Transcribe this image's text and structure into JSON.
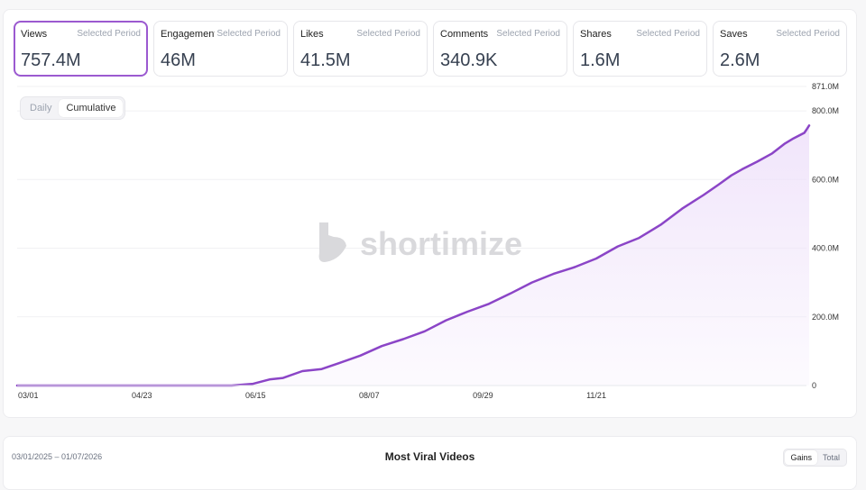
{
  "metrics": [
    {
      "label": "Views",
      "period": "Selected Period",
      "value": "757.4M",
      "active": true
    },
    {
      "label": "Engagement",
      "period": "Selected Period",
      "value": "46M",
      "active": false
    },
    {
      "label": "Likes",
      "period": "Selected Period",
      "value": "41.5M",
      "active": false
    },
    {
      "label": "Comments",
      "period": "Selected Period",
      "value": "340.9K",
      "active": false
    },
    {
      "label": "Shares",
      "period": "Selected Period",
      "value": "1.6M",
      "active": false
    },
    {
      "label": "Saves",
      "period": "Selected Period",
      "value": "2.6M",
      "active": false
    }
  ],
  "toggle": {
    "daily": "Daily",
    "cumulative": "Cumulative",
    "selected": "Cumulative"
  },
  "watermark": {
    "text": "shortimize"
  },
  "chart_data": {
    "type": "area",
    "x_tick_labels": [
      "03/01",
      "04/23",
      "06/15",
      "08/07",
      "09/29",
      "11/21"
    ],
    "y_tick_labels": [
      "871.0M",
      "800.0M",
      "600.0M",
      "400.0M",
      "200.0M",
      "0"
    ],
    "y_ticks": [
      871,
      800,
      600,
      400,
      200,
      0
    ],
    "ylim": [
      0,
      871
    ],
    "y_unit": "M",
    "x": [
      0,
      50,
      100,
      110,
      118,
      124,
      133,
      142,
      150,
      160,
      170,
      180,
      190,
      200,
      210,
      220,
      230,
      240,
      250,
      260,
      270,
      280,
      290,
      300,
      310,
      315,
      320,
      327,
      333,
      338,
      345,
      352,
      358,
      362,
      367,
      368
    ],
    "values": [
      0,
      0,
      0,
      5,
      18,
      22,
      42,
      48,
      65,
      87,
      115,
      135,
      158,
      190,
      215,
      238,
      268,
      300,
      325,
      345,
      370,
      405,
      430,
      468,
      515,
      535,
      555,
      585,
      612,
      630,
      652,
      676,
      705,
      720,
      736,
      745
    ],
    "x_tick_positions": [
      0,
      53,
      106,
      159,
      212,
      265
    ],
    "end_value": 757.4,
    "line_color": "#8b45c7",
    "fill_color": "#efe2fa",
    "grid": true,
    "legend": "none"
  },
  "bottom": {
    "date_range": "03/01/2025 – 01/07/2026",
    "title": "Most Viral Videos",
    "gains": "Gains",
    "total": "Total"
  }
}
